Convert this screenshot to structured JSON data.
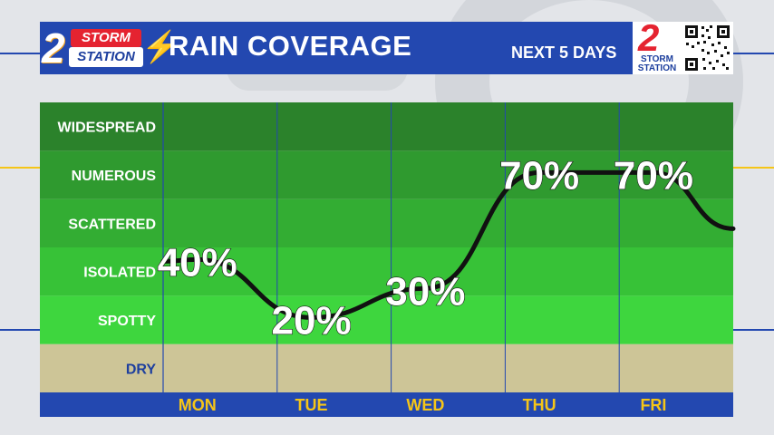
{
  "header": {
    "logo_storm": "STORM",
    "logo_station": "STATION",
    "logo_number": "2",
    "title": "RAIN COVERAGE",
    "subtitle": "NEXT 5 DAYS",
    "corner_logo_number": "2",
    "corner_logo_text": "STORM STATION",
    "qr_code": "qr-code-icon"
  },
  "colors": {
    "header_blue": "#2348b0",
    "day_label_yellow": "#f5c518",
    "dry_band": "#cdc597",
    "axis_blue": "#2348b0"
  },
  "chart_data": {
    "type": "line",
    "title": "RAIN COVERAGE",
    "subtitle": "NEXT 5 DAYS",
    "categories": [
      "MON",
      "TUE",
      "WED",
      "THU",
      "FRI"
    ],
    "series": [
      {
        "values": [
          40,
          20,
          30,
          70,
          70
        ]
      }
    ],
    "data_labels": [
      "40%",
      "20%",
      "30%",
      "70%",
      "70%"
    ],
    "y_categories": [
      "DRY",
      "SPOTTY",
      "ISOLATED",
      "SCATTERED",
      "NUMEROUS",
      "WIDESPREAD"
    ],
    "ylim": [
      0,
      100
    ],
    "grid": true
  }
}
